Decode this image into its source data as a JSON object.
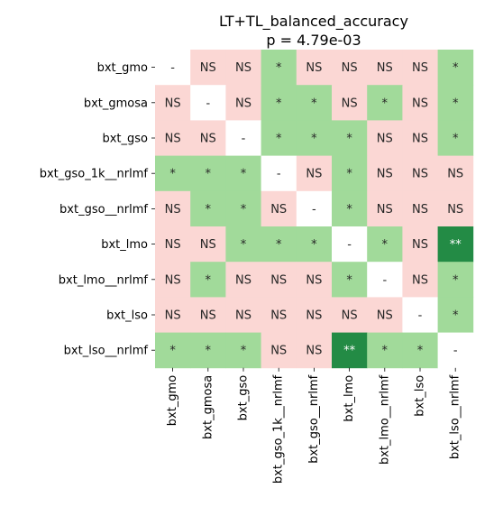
{
  "chart_data": {
    "type": "heatmap",
    "title": "LT+TL_balanced_accuracy",
    "subtitle": "p = 4.79e-03",
    "row_labels": [
      "bxt_gmo",
      "bxt_gmosa",
      "bxt_gso",
      "bxt_gso_1k__nrlmf",
      "bxt_gso__nrlmf",
      "bxt_lmo",
      "bxt_lmo__nrlmf",
      "bxt_lso",
      "bxt_lso__nrlmf"
    ],
    "col_labels": [
      "bxt_gmo",
      "bxt_gmosa",
      "bxt_gso",
      "bxt_gso_1k__nrlmf",
      "bxt_gso__nrlmf",
      "bxt_lmo",
      "bxt_lmo__nrlmf",
      "bxt_lso",
      "bxt_lso__nrlmf"
    ],
    "cells": [
      [
        "-",
        "NS",
        "NS",
        "*",
        "NS",
        "NS",
        "NS",
        "NS",
        "*"
      ],
      [
        "NS",
        "-",
        "NS",
        "*",
        "*",
        "NS",
        "*",
        "NS",
        "*"
      ],
      [
        "NS",
        "NS",
        "-",
        "*",
        "*",
        "*",
        "NS",
        "NS",
        "*"
      ],
      [
        "*",
        "*",
        "*",
        "-",
        "NS",
        "*",
        "NS",
        "NS",
        "NS"
      ],
      [
        "NS",
        "*",
        "*",
        "NS",
        "-",
        "*",
        "NS",
        "NS",
        "NS"
      ],
      [
        "NS",
        "NS",
        "*",
        "*",
        "*",
        "-",
        "*",
        "NS",
        "**"
      ],
      [
        "NS",
        "*",
        "NS",
        "NS",
        "NS",
        "*",
        "-",
        "NS",
        "*"
      ],
      [
        "NS",
        "NS",
        "NS",
        "NS",
        "NS",
        "NS",
        "NS",
        "-",
        "*"
      ],
      [
        "*",
        "*",
        "*",
        "NS",
        "NS",
        "**",
        "*",
        "*",
        "-"
      ]
    ],
    "colors": {
      "-": "#ffffff",
      "NS": "#fbd7d4",
      "*": "#a1da9a",
      "**": "#238b45"
    },
    "text_colors": {
      "-": "#262626",
      "NS": "#262626",
      "*": "#262626",
      "**": "#ffffff"
    },
    "legend": "none",
    "grid": false
  }
}
